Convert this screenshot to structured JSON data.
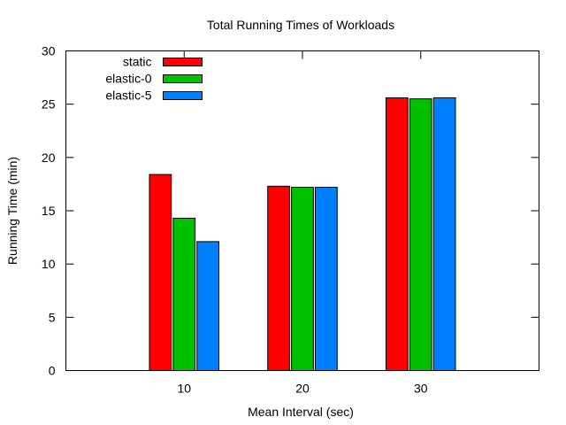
{
  "chart_data": {
    "type": "bar",
    "title": "Total Running Times of Workloads",
    "xlabel": "Mean Interval (sec)",
    "ylabel": "Running Time (min)",
    "categories": [
      "10",
      "20",
      "30"
    ],
    "series": [
      {
        "name": "static",
        "color": "#ff0000",
        "values": [
          18.4,
          17.3,
          25.6
        ]
      },
      {
        "name": "elastic-0",
        "color": "#00c000",
        "values": [
          14.3,
          17.2,
          25.5
        ]
      },
      {
        "name": "elastic-5",
        "color": "#0080ff",
        "values": [
          12.1,
          17.2,
          25.6
        ]
      }
    ],
    "ylim": [
      0,
      30
    ],
    "yticks": [
      0,
      5,
      10,
      15,
      20,
      25,
      30
    ],
    "grid": false,
    "legend_position": "top-left"
  }
}
